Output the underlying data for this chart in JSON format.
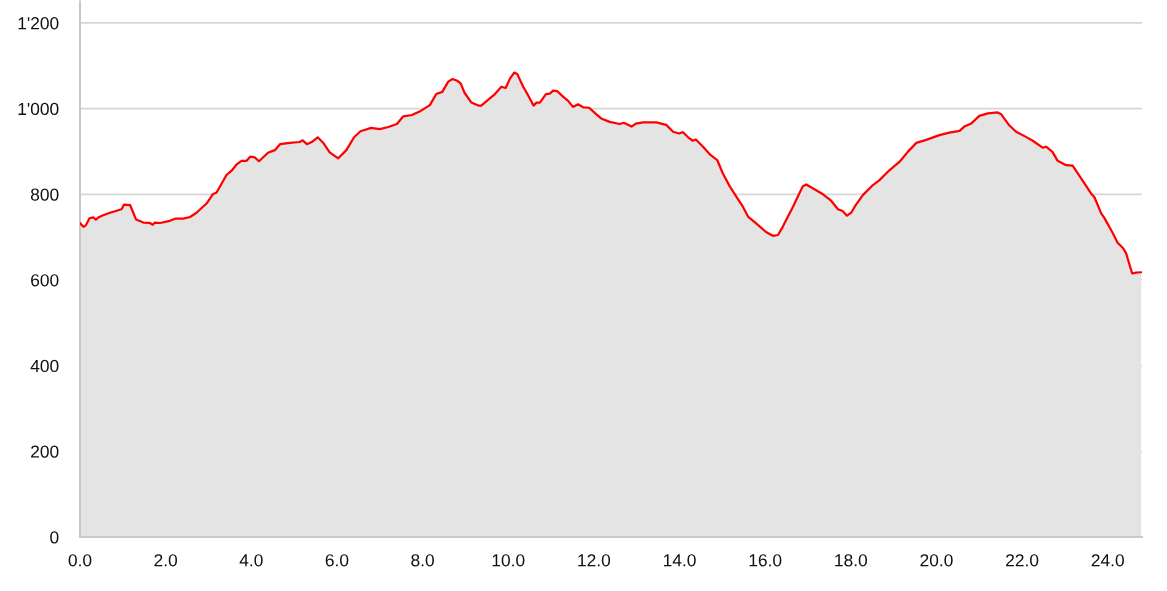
{
  "chart_data": {
    "type": "area",
    "x": [
      0.0,
      0.08,
      0.14,
      0.22,
      0.31,
      0.37,
      0.45,
      0.54,
      0.7,
      0.97,
      1.03,
      1.17,
      1.31,
      1.48,
      1.63,
      1.7,
      1.75,
      1.87,
      2.1,
      2.22,
      2.41,
      2.57,
      2.72,
      2.96,
      3.1,
      3.19,
      3.42,
      3.54,
      3.66,
      3.77,
      3.89,
      3.98,
      4.08,
      4.18,
      4.39,
      4.55,
      4.67,
      4.9,
      5.13,
      5.2,
      5.3,
      5.41,
      5.55,
      5.69,
      5.83,
      6.03,
      6.22,
      6.4,
      6.55,
      6.8,
      7.0,
      7.2,
      7.4,
      7.55,
      7.75,
      7.93,
      8.17,
      8.32,
      8.46,
      8.6,
      8.7,
      8.81,
      8.89,
      8.98,
      9.14,
      9.3,
      9.37,
      9.57,
      9.69,
      9.84,
      9.94,
      10.04,
      10.14,
      10.21,
      10.35,
      10.46,
      10.59,
      10.66,
      10.74,
      10.88,
      10.97,
      11.05,
      11.14,
      11.28,
      11.4,
      11.51,
      11.63,
      11.75,
      11.89,
      12.02,
      12.17,
      12.37,
      12.6,
      12.7,
      12.88,
      12.98,
      13.15,
      13.46,
      13.69,
      13.85,
      13.99,
      14.08,
      14.2,
      14.31,
      14.38,
      14.55,
      14.7,
      14.88,
      15.01,
      15.17,
      15.33,
      15.48,
      15.6,
      15.79,
      16.02,
      16.18,
      16.3,
      16.41,
      16.49,
      16.65,
      16.76,
      16.88,
      16.96,
      17.11,
      17.35,
      17.54,
      17.7,
      17.81,
      17.91,
      18.01,
      18.09,
      18.28,
      18.51,
      18.67,
      18.9,
      19.14,
      19.33,
      19.53,
      19.76,
      20.07,
      20.3,
      20.54,
      20.65,
      20.81,
      21.0,
      21.2,
      21.43,
      21.51,
      21.7,
      21.86,
      22.09,
      22.25,
      22.48,
      22.56,
      22.71,
      22.83,
      23.03,
      23.18,
      23.34,
      23.61,
      23.69,
      23.85,
      23.92,
      24.12,
      24.23,
      24.36,
      24.43,
      24.57,
      24.66,
      24.78
    ],
    "series": [
      {
        "color": "#ff0000",
        "values": [
          733,
          724,
          728,
          744,
          746,
          741,
          747,
          751,
          757,
          765,
          776,
          775,
          741,
          734,
          733,
          729,
          734,
          733,
          738,
          743,
          743,
          747,
          757,
          779,
          800,
          804,
          845,
          855,
          870,
          878,
          878,
          888,
          886,
          877,
          897,
          903,
          917,
          920,
          922,
          926,
          917,
          922,
          933,
          919,
          898,
          884,
          903,
          933,
          947,
          955,
          952,
          957,
          964,
          982,
          985,
          993,
          1008,
          1034,
          1039,
          1063,
          1069,
          1065,
          1059,
          1037,
          1014,
          1007,
          1007,
          1024,
          1034,
          1051,
          1048,
          1070,
          1084,
          1081,
          1051,
          1032,
          1007,
          1014,
          1014,
          1034,
          1035,
          1042,
          1041,
          1028,
          1018,
          1004,
          1010,
          1003,
          1002,
          990,
          977,
          969,
          964,
          967,
          958,
          965,
          968,
          968,
          962,
          946,
          942,
          945,
          933,
          925,
          928,
          911,
          894,
          880,
          849,
          819,
          794,
          771,
          748,
          732,
          712,
          703,
          705,
          724,
          740,
          771,
          794,
          819,
          823,
          814,
          800,
          785,
          765,
          761,
          750,
          757,
          771,
          798,
          821,
          833,
          856,
          876,
          899,
          920,
          927,
          938,
          944,
          948,
          958,
          965,
          983,
          989,
          991,
          987,
          961,
          946,
          934,
          925,
          909,
          911,
          899,
          878,
          868,
          867,
          843,
          802,
          793,
          755,
          745,
          709,
          687,
          674,
          662,
          615,
          617,
          618
        ]
      }
    ],
    "xlim": [
      0,
      24.8
    ],
    "ylim": [
      0,
      1250
    ],
    "xticks": [
      {
        "value": 0,
        "label": "0.0"
      },
      {
        "value": 2,
        "label": "2.0"
      },
      {
        "value": 4,
        "label": "4.0"
      },
      {
        "value": 6,
        "label": "6.0"
      },
      {
        "value": 8,
        "label": "8.0"
      },
      {
        "value": 10,
        "label": "10.0"
      },
      {
        "value": 12,
        "label": "12.0"
      },
      {
        "value": 14,
        "label": "14.0"
      },
      {
        "value": 16,
        "label": "16.0"
      },
      {
        "value": 18,
        "label": "18.0"
      },
      {
        "value": 20,
        "label": "20.0"
      },
      {
        "value": 22,
        "label": "22.0"
      },
      {
        "value": 24,
        "label": "24.0"
      }
    ],
    "yticks": [
      0,
      200,
      400,
      600,
      800,
      {
        "value": 1000,
        "label": "1'000"
      },
      {
        "value": 1200,
        "label": "1'200"
      }
    ],
    "grid": "y"
  }
}
